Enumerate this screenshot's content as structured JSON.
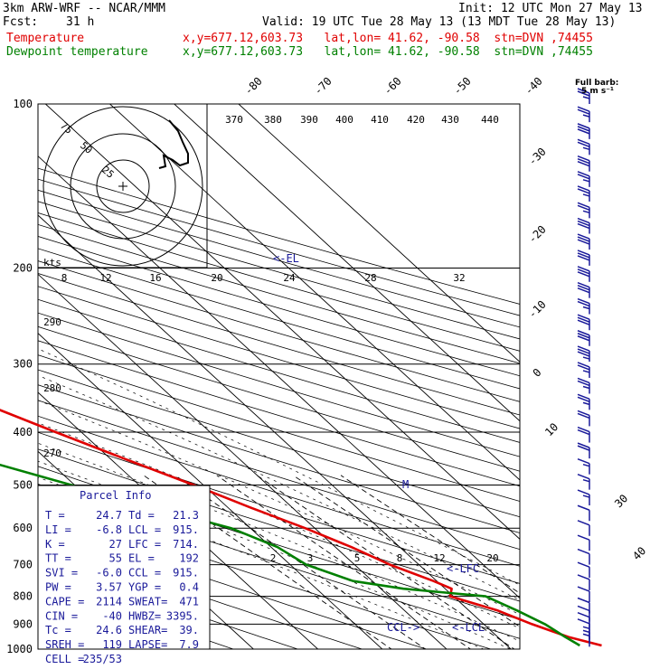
{
  "header": {
    "model": "3km ARW-WRF -- NCAR/MMM",
    "init": "Init: 12 UTC Mon 27 May 13",
    "fcst_label": "Fcst:",
    "fcst_value": "31 h",
    "valid": "Valid: 19 UTC Tue 28 May 13 (13 MDT Tue 28 May 13)",
    "temp_label": "Temperature",
    "temp_info": "x,y=677.12,603.73   lat,lon= 41.62, -90.58  stn=DVN ,74455",
    "dew_label": "Dewpoint temperature",
    "dew_info": "x,y=677.12,603.73   lat,lon= 41.62, -90.58  stn=DVN ,74455",
    "full_barb": "Full barb:",
    "full_barb_val": "5 m s⁻¹"
  },
  "colors": {
    "temperature": "#e00000",
    "dewpoint": "#008000",
    "wind": "#1a1a9a",
    "grid": "#000000"
  },
  "chart_data": {
    "type": "line",
    "title": "Skew-T log-P sounding",
    "ylabel": "Pressure (hPa)",
    "pressure_ticks": [
      100,
      200,
      300,
      400,
      500,
      600,
      700,
      800,
      900,
      1000
    ],
    "isotherm_labels": [
      "-80",
      "-70",
      "-60",
      "-50",
      "-40",
      "-30",
      "-20",
      "-10",
      "0",
      "10",
      "30",
      "40"
    ],
    "theta_labels": [
      "370",
      "380",
      "390",
      "400",
      "410",
      "420",
      "430",
      "440"
    ],
    "dry_adiabat_labels": [
      "290",
      "280",
      "270"
    ],
    "mixing_ratio_labels": [
      "2",
      "3",
      "5",
      "8",
      "12",
      "20"
    ],
    "hodograph": {
      "unit_label": "kts",
      "ring_labels": [
        "25",
        "50",
        "75"
      ],
      "speed_labels": [
        "8",
        "12",
        "16",
        "20",
        "24",
        "28",
        "32"
      ]
    },
    "level_markers": [
      "<-EL",
      "<-LFC",
      "<-LCL",
      "CCL->",
      "M"
    ],
    "series": [
      {
        "name": "Temperature",
        "color": "#e00000",
        "pressure": [
          100,
          110,
          125,
          140,
          150,
          165,
          185,
          200,
          220,
          250,
          280,
          300,
          330,
          360,
          400,
          450,
          500,
          550,
          600,
          650,
          700,
          750,
          775,
          800,
          850,
          900,
          950,
          985
        ],
        "temperature": [
          -60.2,
          -62.0,
          -64.5,
          -63.5,
          -60.0,
          -57.0,
          -55.5,
          -52.5,
          -50.0,
          -45.5,
          -41.5,
          -38.5,
          -34.0,
          -29.5,
          -24.0,
          -17.5,
          -11.5,
          -6.5,
          -1.5,
          2.5,
          5.5,
          9.5,
          11.0,
          9.5,
          14.5,
          17.5,
          21.0,
          24.7
        ]
      },
      {
        "name": "Dewpoint temperature",
        "color": "#008000",
        "pressure": [
          100,
          110,
          125,
          140,
          150,
          165,
          185,
          200,
          220,
          250,
          280,
          300,
          330,
          360,
          400,
          450,
          500,
          550,
          600,
          650,
          700,
          750,
          775,
          800,
          850,
          900,
          950,
          985
        ],
        "temperature": [
          -79.5,
          -78.5,
          -83.0,
          -90.0,
          -93.5,
          -94.5,
          -94.0,
          -91.5,
          -87.5,
          -79.5,
          -72.5,
          -72.0,
          -72.0,
          -62.5,
          -50.5,
          -40.0,
          -30.5,
          -21.5,
          -13.0,
          -9.0,
          -7.5,
          -3.0,
          3.5,
          15.0,
          17.5,
          19.5,
          20.5,
          21.3
        ]
      }
    ],
    "wind_barbs": [
      {
        "p": 100,
        "spd": 25
      },
      {
        "p": 108,
        "spd": 25
      },
      {
        "p": 116,
        "spd": 30
      },
      {
        "p": 124,
        "spd": 25
      },
      {
        "p": 133,
        "spd": 30
      },
      {
        "p": 142,
        "spd": 25
      },
      {
        "p": 151,
        "spd": 25
      },
      {
        "p": 162,
        "spd": 25
      },
      {
        "p": 173,
        "spd": 30
      },
      {
        "p": 185,
        "spd": 30
      },
      {
        "p": 198,
        "spd": 30
      },
      {
        "p": 212,
        "spd": 30
      },
      {
        "p": 227,
        "spd": 30
      },
      {
        "p": 243,
        "spd": 25
      },
      {
        "p": 260,
        "spd": 30
      },
      {
        "p": 278,
        "spd": 30
      },
      {
        "p": 297,
        "spd": 35
      },
      {
        "p": 318,
        "spd": 25
      },
      {
        "p": 340,
        "spd": 25
      },
      {
        "p": 364,
        "spd": 25
      },
      {
        "p": 390,
        "spd": 20
      },
      {
        "p": 418,
        "spd": 20
      },
      {
        "p": 447,
        "spd": 20
      },
      {
        "p": 478,
        "spd": 15
      },
      {
        "p": 510,
        "spd": 15
      },
      {
        "p": 545,
        "spd": 15
      },
      {
        "p": 582,
        "spd": 10
      },
      {
        "p": 620,
        "spd": 10
      },
      {
        "p": 660,
        "spd": 10
      },
      {
        "p": 700,
        "spd": 10
      },
      {
        "p": 740,
        "spd": 10
      },
      {
        "p": 780,
        "spd": 10
      },
      {
        "p": 820,
        "spd": 10
      },
      {
        "p": 860,
        "spd": 10
      },
      {
        "p": 890,
        "spd": 10
      },
      {
        "p": 915,
        "spd": 10
      },
      {
        "p": 940,
        "spd": 10
      },
      {
        "p": 960,
        "spd": 5
      },
      {
        "p": 975,
        "spd": 5
      },
      {
        "p": 990,
        "spd": 5
      }
    ]
  },
  "parcel_info": {
    "title": "Parcel Info",
    "rows": [
      [
        "T  =",
        "24.7",
        "Td =",
        "21.3"
      ],
      [
        "LI =",
        "-6.8",
        "LCL =",
        "915."
      ],
      [
        "K  =",
        "27",
        "LFC =",
        "714."
      ],
      [
        "TT =",
        "55",
        "EL  =",
        "192"
      ],
      [
        "SVI =",
        "-6.0",
        "CCL =",
        "915."
      ],
      [
        "PW =",
        "3.57",
        "YGP =",
        "0.4"
      ],
      [
        "CAPE =",
        "2114",
        "SWEAT=",
        "471"
      ],
      [
        "CIN =",
        "-40",
        "HWBZ=",
        "3395."
      ],
      [
        "Tc =",
        "24.6",
        "SHEAR=",
        "39."
      ],
      [
        "SREH =",
        "119",
        "LAPSE=",
        "7.9"
      ],
      [
        "CELL =",
        "235/53",
        "",
        ""
      ]
    ]
  }
}
